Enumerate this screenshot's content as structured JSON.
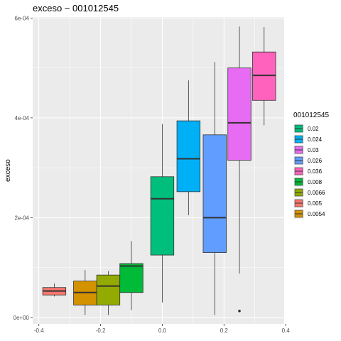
{
  "chart_data": {
    "type": "boxplot",
    "title": "exceso ~ 001012545",
    "xlabel": "",
    "ylabel": "exceso",
    "xlim": [
      -0.42,
      0.395
    ],
    "ylim": [
      -1.3e-05,
      0.000602
    ],
    "x_ticks": [
      {
        "value": -0.4,
        "label": "-0.4"
      },
      {
        "value": -0.2,
        "label": "-0.2"
      },
      {
        "value": 0.0,
        "label": "0.0"
      },
      {
        "value": 0.2,
        "label": "0.2"
      },
      {
        "value": 0.4,
        "label": "0.4"
      }
    ],
    "y_ticks": [
      {
        "value": 0.0,
        "label": "0e+00"
      },
      {
        "value": 0.0002,
        "label": "2e-04"
      },
      {
        "value": 0.0004,
        "label": "4e-04"
      },
      {
        "value": 0.0006,
        "label": "6e-04"
      }
    ],
    "legend": {
      "title": "001012545",
      "position": "right",
      "entries": [
        {
          "label": "0.02",
          "color": "#00BF7D"
        },
        {
          "label": "0.024",
          "color": "#00B0F6"
        },
        {
          "label": "0.03",
          "color": "#E76BF3"
        },
        {
          "label": "0.026",
          "color": "#619CFF"
        },
        {
          "label": "0.036",
          "color": "#FF62BC"
        },
        {
          "label": "0.008",
          "color": "#00BA38"
        },
        {
          "label": "0.0066",
          "color": "#93AA00"
        },
        {
          "label": "0.005",
          "color": "#F8766D"
        },
        {
          "label": "0.0054",
          "color": "#D39200"
        }
      ]
    },
    "boxes": [
      {
        "group": "0.005",
        "color": "#F8766D",
        "x": -0.35,
        "width": 0.075,
        "min": 4.2e-05,
        "q1": 4.5e-05,
        "median": 5.3e-05,
        "q3": 6e-05,
        "max": 6.8e-05,
        "outliers": []
      },
      {
        "group": "0.0054",
        "color": "#D39200",
        "x": -0.25,
        "width": 0.075,
        "min": 5e-06,
        "q1": 2.5e-05,
        "median": 5e-05,
        "q3": 7.3e-05,
        "max": 9.5e-05,
        "outliers": []
      },
      {
        "group": "0.0066",
        "color": "#93AA00",
        "x": -0.175,
        "width": 0.075,
        "min": 5e-06,
        "q1": 2.5e-05,
        "median": 6.3e-05,
        "q3": 8.5e-05,
        "max": 9.3e-05,
        "outliers": []
      },
      {
        "group": "0.008",
        "color": "#00BA38",
        "x": -0.1,
        "width": 0.075,
        "min": 1.5e-05,
        "q1": 5e-05,
        "median": 0.000103,
        "q3": 0.000108,
        "max": 0.000153,
        "outliers": []
      },
      {
        "group": "0.02",
        "color": "#00BF7D",
        "x": 0.0,
        "width": 0.075,
        "min": 3e-05,
        "q1": 0.000125,
        "median": 0.000238,
        "q3": 0.000282,
        "max": 0.000388,
        "outliers": []
      },
      {
        "group": "0.024",
        "color": "#00B0F6",
        "x": 0.085,
        "width": 0.075,
        "min": 0.000205,
        "q1": 0.000252,
        "median": 0.000318,
        "q3": 0.000394,
        "max": 0.000475,
        "outliers": []
      },
      {
        "group": "0.026",
        "color": "#619CFF",
        "x": 0.17,
        "width": 0.075,
        "min": 5e-06,
        "q1": 0.00013,
        "median": 0.0002,
        "q3": 0.000366,
        "max": 0.000512,
        "outliers": []
      },
      {
        "group": "0.03",
        "color": "#E76BF3",
        "x": 0.25,
        "width": 0.075,
        "min": 8.8e-05,
        "q1": 0.000315,
        "median": 0.00039,
        "q3": 0.0005,
        "max": 0.000583,
        "outliers": [
          1.3e-05
        ]
      },
      {
        "group": "0.036",
        "color": "#FF62BC",
        "x": 0.33,
        "width": 0.075,
        "min": 0.000385,
        "q1": 0.000435,
        "median": 0.000485,
        "q3": 0.000532,
        "max": 0.000582,
        "outliers": []
      }
    ]
  }
}
